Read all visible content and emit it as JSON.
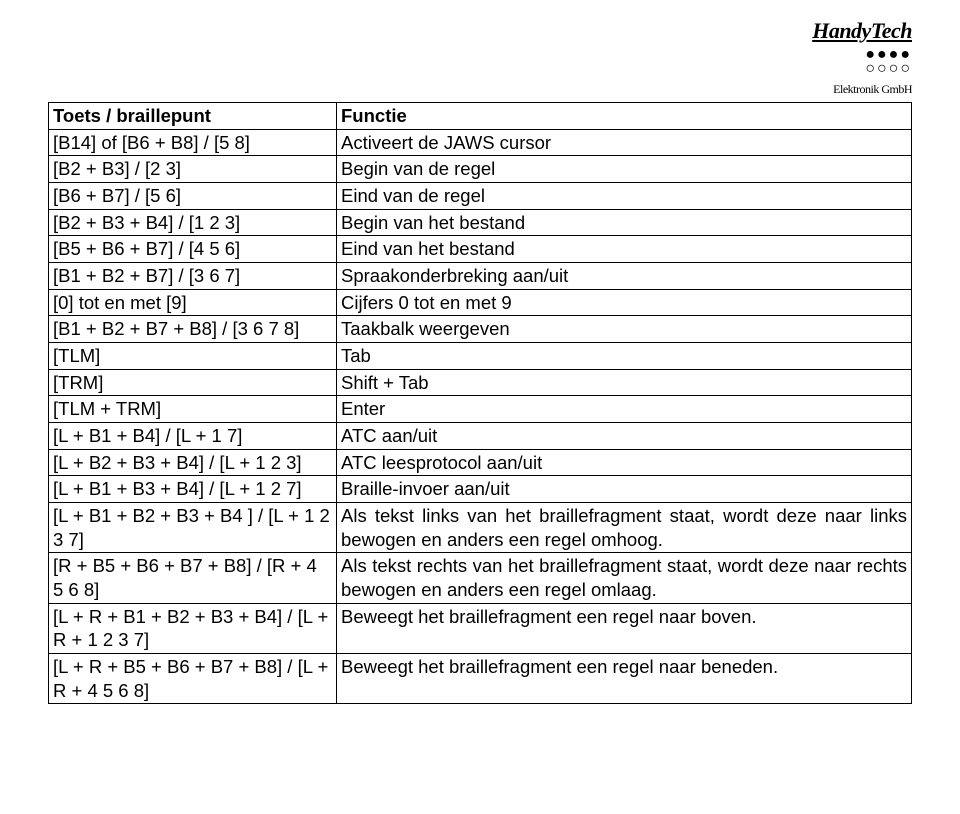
{
  "logo": {
    "brand": "HandyTech",
    "sub": "Elektronik GmbH"
  },
  "table": {
    "header": {
      "col1": "Toets / braillepunt",
      "col2": "Functie"
    },
    "rows": [
      {
        "c1": "[B14] of [B6 + B8] / [5 8]",
        "c2": "Activeert de JAWS cursor"
      },
      {
        "c1": "[B2 + B3] / [2 3]",
        "c2": "Begin van de regel"
      },
      {
        "c1": "[B6 + B7] / [5 6]",
        "c2": "Eind van de regel"
      },
      {
        "c1": "[B2 + B3 + B4] / [1 2 3]",
        "c2": "Begin van het bestand"
      },
      {
        "c1": "[B5 + B6 + B7] / [4 5 6]",
        "c2": "Eind van het bestand"
      },
      {
        "c1": "[B1 + B2 + B7] / [3 6 7]",
        "c2": "Spraakonderbreking aan/uit"
      },
      {
        "c1": "[0] tot en met [9]",
        "c2": "Cijfers 0 tot en met 9"
      },
      {
        "c1": "[B1 + B2 + B7 + B8] / [3 6 7 8]",
        "c2": "Taakbalk weergeven"
      },
      {
        "c1": "[TLM]",
        "c2": "Tab"
      },
      {
        "c1": "[TRM]",
        "c2": "Shift + Tab"
      },
      {
        "c1": "[TLM + TRM]",
        "c2": "Enter"
      },
      {
        "c1": "[L + B1 + B4] / [L + 1 7]",
        "c2": "ATC aan/uit"
      },
      {
        "c1": "[L + B2 + B3 + B4] / [L + 1 2 3]",
        "c1class": "justify",
        "c2": "ATC leesprotocol aan/uit"
      },
      {
        "c1": "[L + B1 + B3 + B4] / [L + 1 2 7]",
        "c1class": "justify",
        "c2": "Braille-invoer aan/uit"
      },
      {
        "c1": "[L + B1 + B2 + B3 + B4 ] / [L + 1 2 3 7]",
        "c2": "Als tekst links van het braillefragment staat, wordt deze naar links bewogen en anders een regel omhoog.",
        "c2class": "justify"
      },
      {
        "c1": "[R + B5 + B6 + B7 + B8] / [R + 4 5 6 8]",
        "c2": "Als tekst rechts van het braillefragment staat, wordt deze naar rechts bewogen en anders een regel omlaag.",
        "c2class": "justify"
      },
      {
        "c1": "[L + R + B1 + B2 + B3 + B4] / [L + R + 1 2 3 7]",
        "c2": "Beweegt het braillefragment een regel naar boven."
      },
      {
        "c1": "[L + R + B5 + B6 + B7 + B8] / [L + R + 4 5 6 8]",
        "c2": "Beweegt het braillefragment een regel naar beneden."
      }
    ]
  }
}
